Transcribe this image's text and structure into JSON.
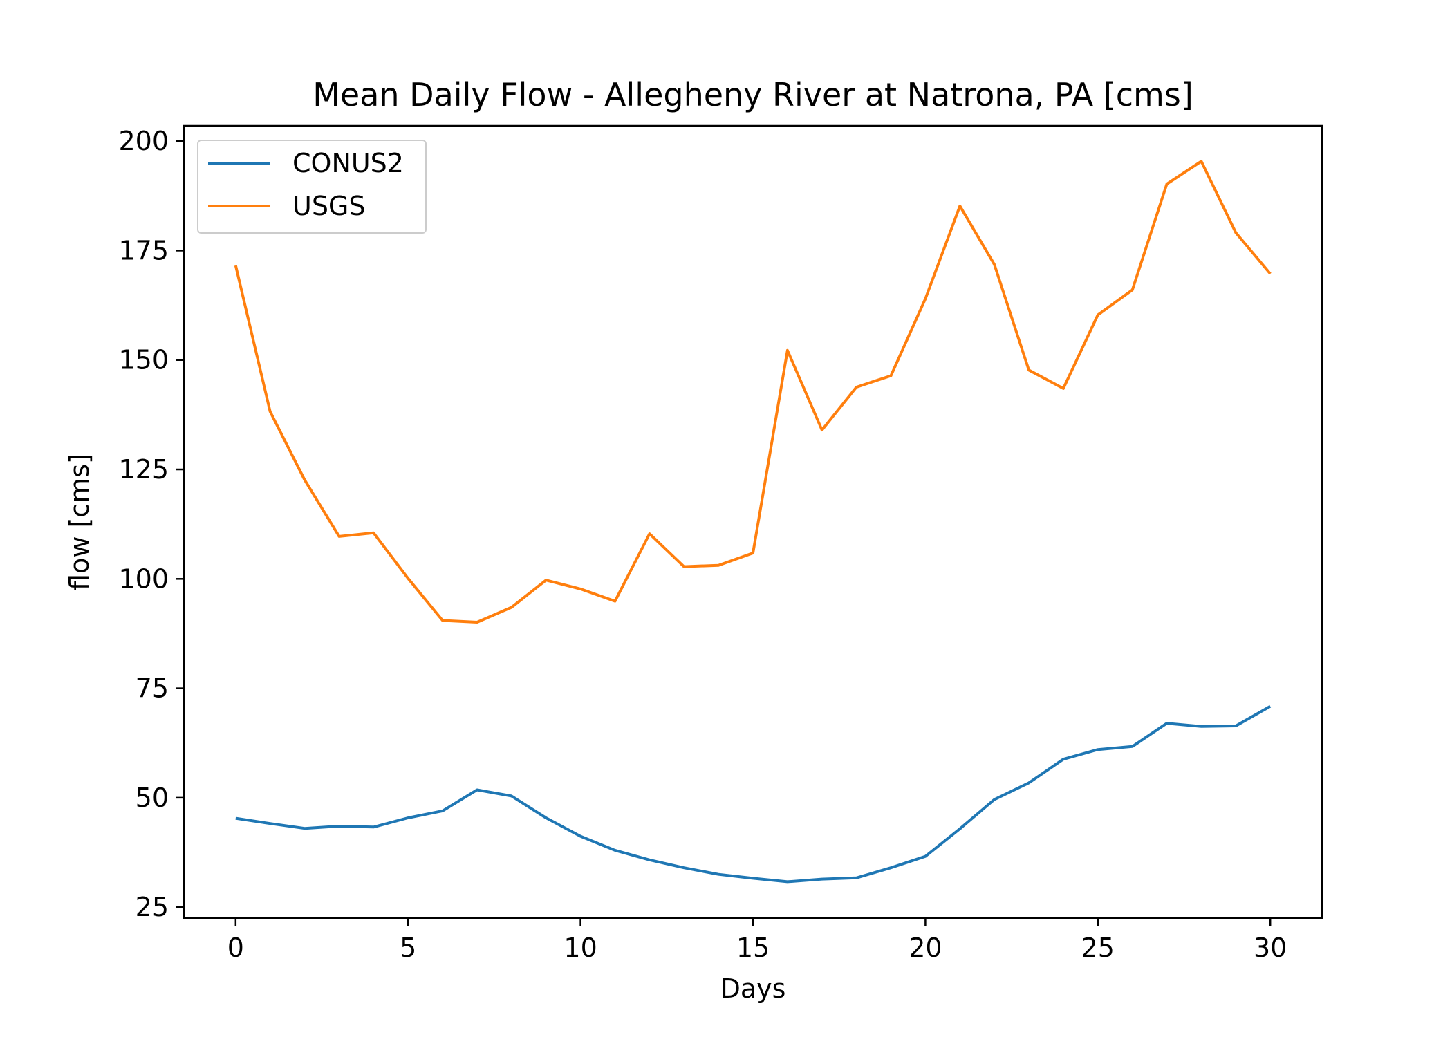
{
  "chart_data": {
    "type": "line",
    "title": "Mean Daily Flow - Allegheny River at Natrona, PA [cms]",
    "xlabel": "Days",
    "ylabel": "flow [cms]",
    "xlim": [
      -1.5,
      31.5
    ],
    "ylim": [
      22.5,
      203.5
    ],
    "xticks": [
      0,
      5,
      10,
      15,
      20,
      25,
      30
    ],
    "yticks": [
      25,
      50,
      75,
      100,
      125,
      150,
      175,
      200
    ],
    "grid": false,
    "legend_position": "upper-left",
    "x": [
      0,
      1,
      2,
      3,
      4,
      5,
      6,
      7,
      8,
      9,
      10,
      11,
      12,
      13,
      14,
      15,
      16,
      17,
      18,
      19,
      20,
      21,
      22,
      23,
      24,
      25,
      26,
      27,
      28,
      29,
      30
    ],
    "series": [
      {
        "name": "CONUS2",
        "color": "#1f77b4",
        "values": [
          45.3,
          44.1,
          43.0,
          43.5,
          43.3,
          45.4,
          47.0,
          51.8,
          50.4,
          45.4,
          41.2,
          38.0,
          35.8,
          34.0,
          32.5,
          31.6,
          30.8,
          31.4,
          31.7,
          34.0,
          36.6,
          42.9,
          49.6,
          53.4,
          58.8,
          61.0,
          61.7,
          67.0,
          66.3,
          66.4,
          70.9
        ]
      },
      {
        "name": "USGS",
        "color": "#ff7f0e",
        "values": [
          171.6,
          138.2,
          122.6,
          109.7,
          110.5,
          100.1,
          90.5,
          90.1,
          93.5,
          99.7,
          97.7,
          94.9,
          110.3,
          102.8,
          103.1,
          105.9,
          152.2,
          134.0,
          143.8,
          146.4,
          164.0,
          185.2,
          171.8,
          147.7,
          143.5,
          160.3,
          166.0,
          190.2,
          195.4,
          179.1,
          169.7
        ]
      }
    ]
  }
}
